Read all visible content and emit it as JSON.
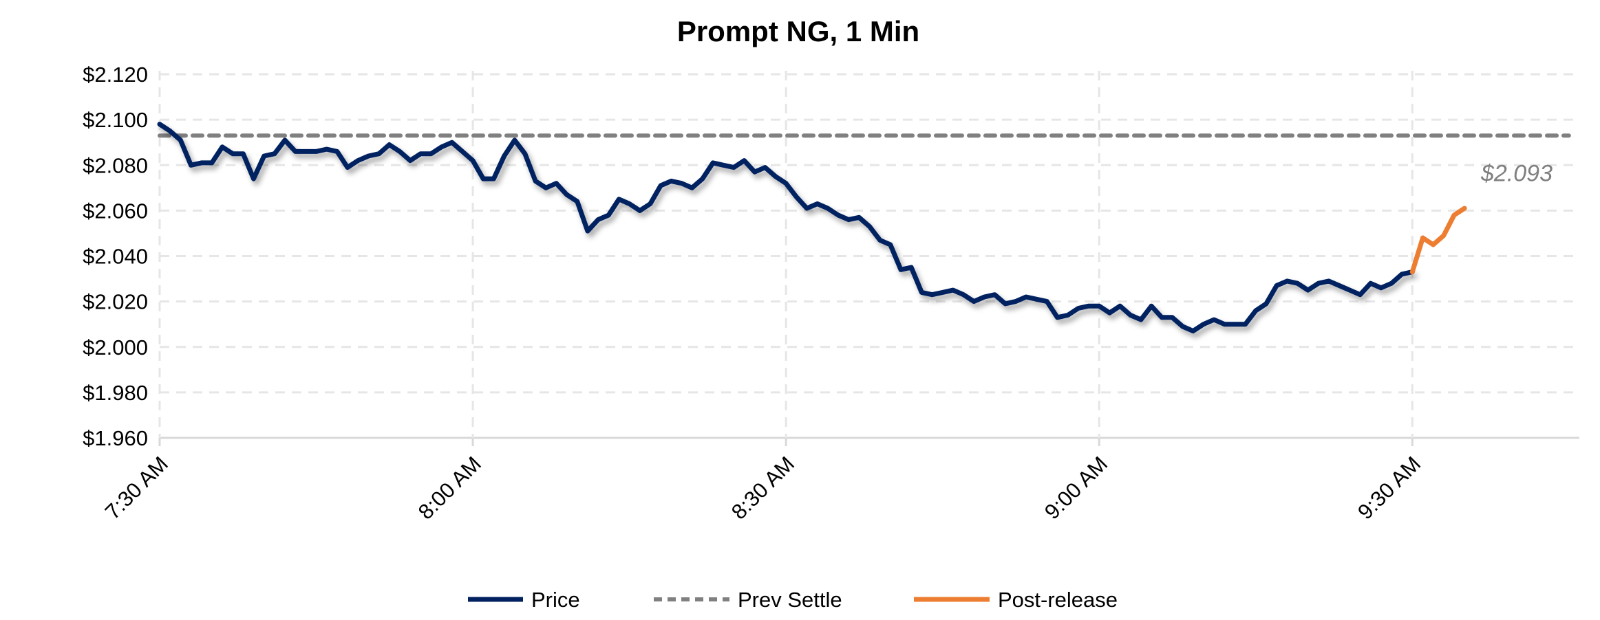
{
  "chart_data": {
    "type": "line",
    "title": "Prompt NG, 1 Min",
    "xlabel": "",
    "ylabel": "",
    "ylim": [
      1.96,
      2.12
    ],
    "y_ticks": [
      "$2.120",
      "$2.100",
      "$2.080",
      "$2.060",
      "$2.040",
      "$2.020",
      "$2.000",
      "$1.980",
      "$1.960"
    ],
    "y_tick_values": [
      2.12,
      2.1,
      2.08,
      2.06,
      2.04,
      2.02,
      2.0,
      1.98,
      1.96
    ],
    "x_unit": "minutes after 7:30 AM",
    "xlim": [
      0,
      136
    ],
    "x_ticks": [
      "7:30 AM",
      "8:00 AM",
      "8:30 AM",
      "9:00 AM",
      "9:30 AM"
    ],
    "x_tick_values": [
      0,
      30,
      60,
      90,
      120
    ],
    "grid": true,
    "legend_position": "bottom",
    "series": [
      {
        "name": "Price",
        "color": "#002060",
        "x_start": 0,
        "values": [
          2.098,
          2.095,
          2.091,
          2.08,
          2.081,
          2.081,
          2.088,
          2.085,
          2.085,
          2.074,
          2.084,
          2.085,
          2.091,
          2.086,
          2.086,
          2.086,
          2.087,
          2.086,
          2.079,
          2.082,
          2.084,
          2.085,
          2.089,
          2.086,
          2.082,
          2.085,
          2.085,
          2.088,
          2.09,
          2.086,
          2.082,
          2.074,
          2.074,
          2.084,
          2.091,
          2.085,
          2.073,
          2.07,
          2.072,
          2.067,
          2.064,
          2.051,
          2.056,
          2.058,
          2.065,
          2.063,
          2.06,
          2.063,
          2.071,
          2.073,
          2.072,
          2.07,
          2.074,
          2.081,
          2.08,
          2.079,
          2.082,
          2.077,
          2.079,
          2.075,
          2.072,
          2.066,
          2.061,
          2.063,
          2.061,
          2.058,
          2.056,
          2.057,
          2.053,
          2.047,
          2.045,
          2.034,
          2.035,
          2.024,
          2.023,
          2.024,
          2.025,
          2.023,
          2.02,
          2.022,
          2.023,
          2.019,
          2.02,
          2.022,
          2.021,
          2.02,
          2.013,
          2.014,
          2.017,
          2.018,
          2.018,
          2.015,
          2.018,
          2.014,
          2.012,
          2.018,
          2.013,
          2.013,
          2.009,
          2.007,
          2.01,
          2.012,
          2.01,
          2.01,
          2.01,
          2.016,
          2.019,
          2.027,
          2.029,
          2.028,
          2.025,
          2.028,
          2.029,
          2.027,
          2.025,
          2.023,
          2.028,
          2.026,
          2.028,
          2.032,
          2.033
        ]
      },
      {
        "name": "Prev Settle",
        "color": "#808080",
        "style": "dashed",
        "value": 2.093,
        "x_range": [
          0,
          135
        ]
      },
      {
        "name": "Post-release",
        "color": "#ED7D31",
        "x_start": 120,
        "values": [
          2.033,
          2.048,
          2.045,
          2.049,
          2.058,
          2.061
        ]
      }
    ],
    "annotations": [
      {
        "text": "$2.093",
        "refers_to": "Prev Settle"
      }
    ]
  }
}
